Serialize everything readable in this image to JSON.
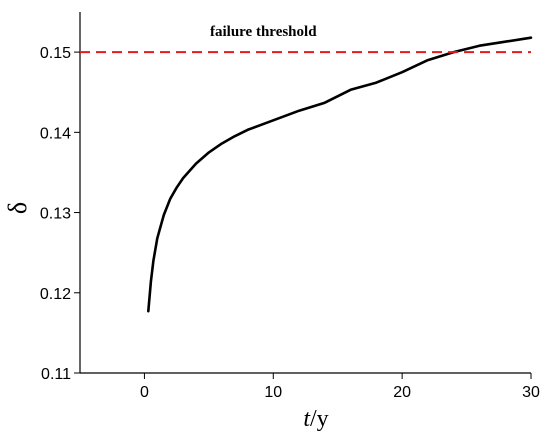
{
  "chart_data": {
    "type": "line",
    "xlabel_italic": "t",
    "xlabel_rest": "/y",
    "ylabel": "δ",
    "xlim": [
      -5,
      30
    ],
    "ylim": [
      0.11,
      0.155
    ],
    "x_ticks": [
      0,
      10,
      20,
      30
    ],
    "x_tick_labels": [
      "0",
      "10",
      "20",
      "30"
    ],
    "y_ticks": [
      0.11,
      0.12,
      0.13,
      0.14,
      0.15
    ],
    "y_tick_labels": [
      "0.11",
      "0.12",
      "0.13",
      "0.14",
      "0.15"
    ],
    "grid": false,
    "series": [
      {
        "color": "#000000",
        "x": [
          0.3,
          0.5,
          0.7,
          1.0,
          1.5,
          2.0,
          2.5,
          3.0,
          4.0,
          5.0,
          6.0,
          7.0,
          8.0,
          10.0,
          12.0,
          14.0,
          16.0,
          18.0,
          20.0,
          22.0,
          24.0,
          26.0,
          28.0,
          30.0
        ],
        "y": [
          0.1177,
          0.1214,
          0.124,
          0.1268,
          0.1297,
          0.1317,
          0.1331,
          0.1343,
          0.1361,
          0.1375,
          0.1386,
          0.1395,
          0.1403,
          0.1415,
          0.1427,
          0.1437,
          0.1453,
          0.1462,
          0.1475,
          0.149,
          0.15,
          0.1508,
          0.1513,
          0.1518
        ]
      }
    ],
    "threshold": {
      "value": 0.15,
      "label": "failure threshold",
      "color": "#e41a1c",
      "style": "dashed"
    }
  }
}
